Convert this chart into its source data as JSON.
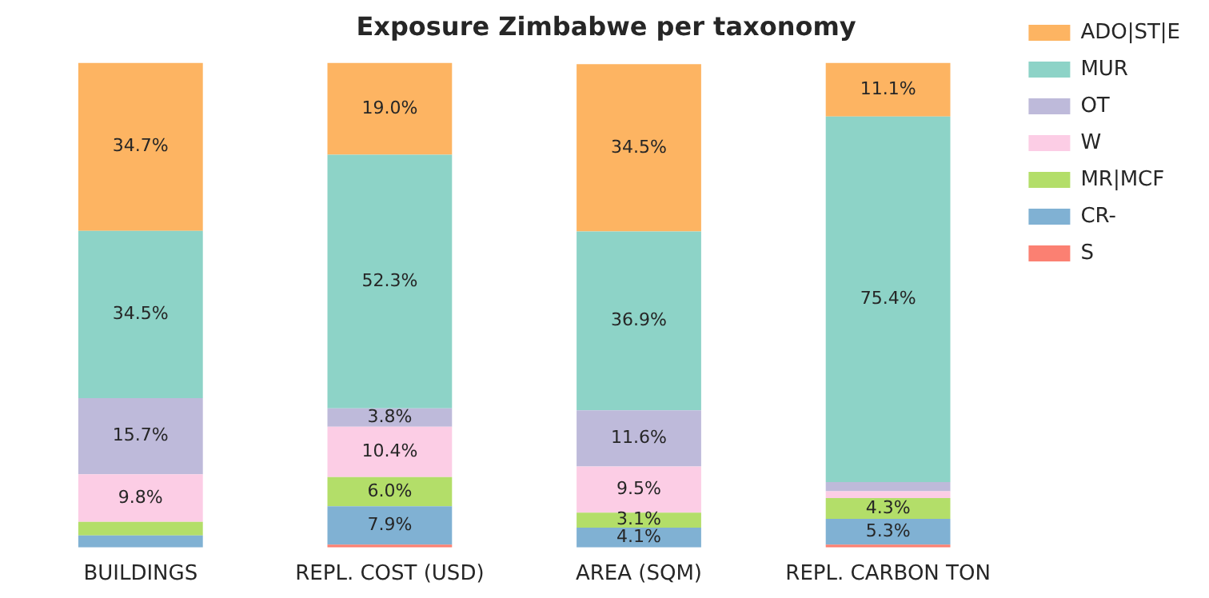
{
  "chart_data": {
    "type": "bar",
    "title": "Exposure Zimbabwe per taxonomy",
    "stacked": true,
    "legend": "top right",
    "tick_labels": "x",
    "ylim": [
      0,
      100
    ],
    "categories": [
      "BUILDINGS",
      "REPL. COST (USD)",
      "AREA (SQM)",
      "REPL. CARBON TON"
    ],
    "series": [
      {
        "name": "S",
        "color": "#fb8072",
        "values": [
          0,
          0.6,
          0,
          0.6
        ],
        "value_labels": [
          null,
          null,
          null,
          null
        ]
      },
      {
        "name": "CR-",
        "color": "#80b1d3",
        "values": [
          2.5,
          7.9,
          4.1,
          5.3
        ],
        "value_labels": [
          null,
          "7.9%",
          "4.1%",
          "5.3%"
        ]
      },
      {
        "name": "MR|MCF",
        "color": "#b3de69",
        "values": [
          2.8,
          6.0,
          3.1,
          4.3
        ],
        "value_labels": [
          null,
          "6.0%",
          "3.1%",
          "4.3%"
        ]
      },
      {
        "name": "W",
        "color": "#fccde5",
        "values": [
          9.8,
          10.4,
          9.5,
          1.4
        ],
        "value_labels": [
          "9.8%",
          "10.4%",
          "9.5%",
          null
        ]
      },
      {
        "name": "OT",
        "color": "#bebada",
        "values": [
          15.7,
          3.8,
          11.6,
          1.9
        ],
        "value_labels": [
          "15.7%",
          "3.8%",
          "11.6%",
          null
        ]
      },
      {
        "name": "MUR",
        "color": "#8dd3c7",
        "values": [
          34.5,
          52.3,
          36.9,
          75.4
        ],
        "value_labels": [
          "34.5%",
          "52.3%",
          "36.9%",
          "75.4%"
        ]
      },
      {
        "name": "ADO|ST|E",
        "color": "#fdb462",
        "values": [
          34.7,
          19.0,
          34.5,
          11.1
        ],
        "value_labels": [
          "34.7%",
          "19.0%",
          "34.5%",
          "11.1%"
        ]
      }
    ]
  }
}
